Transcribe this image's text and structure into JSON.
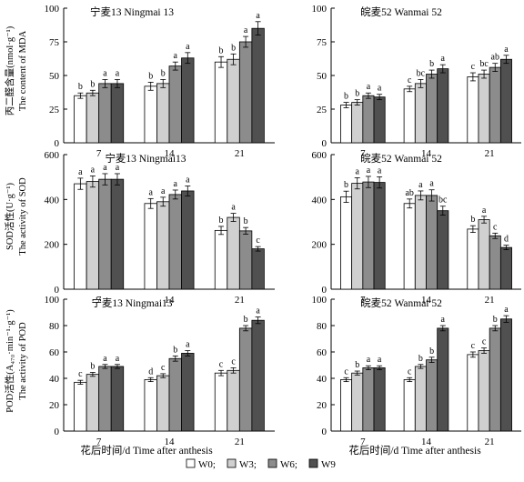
{
  "figure": {
    "x_axis_label": "花后时间/d   Time after anthesis",
    "legend": [
      "W0;",
      "W3;",
      "W6;",
      "W9"
    ],
    "series_colors": [
      "#ffffff",
      "#d0d0d0",
      "#8c8c8c",
      "#505050"
    ]
  },
  "row_labels": [
    {
      "cn": "丙二醛含量(nmol·g⁻¹)",
      "en": "The content of MDA"
    },
    {
      "cn": "SOD活性(U·g⁻¹)",
      "en": "The activity of SOD"
    },
    {
      "cn": "POD活性(A₄₇₀·min⁻¹·g⁻¹)",
      "en": "The activity of POD"
    }
  ],
  "chart_data": [
    {
      "type": "bar",
      "title": "宁麦13 Ningmai 13",
      "categories": [
        "7",
        "14",
        "21"
      ],
      "ylim": [
        0,
        100
      ],
      "yticks": [
        0,
        25,
        50,
        75,
        100
      ],
      "series": [
        {
          "name": "W0",
          "values": [
            35,
            42,
            60
          ],
          "errors": [
            2,
            3,
            4
          ]
        },
        {
          "name": "W3",
          "values": [
            37,
            44,
            62
          ],
          "errors": [
            2,
            3,
            4
          ]
        },
        {
          "name": "W6",
          "values": [
            44,
            57,
            75
          ],
          "errors": [
            3,
            3,
            4
          ]
        },
        {
          "name": "W9",
          "values": [
            44,
            63,
            85
          ],
          "errors": [
            3,
            4,
            5
          ]
        }
      ],
      "labels": [
        [
          "b",
          "b",
          "a",
          "a"
        ],
        [
          "b",
          "b",
          "a",
          "a"
        ],
        [
          "b",
          "b",
          "a",
          "a"
        ]
      ]
    },
    {
      "type": "bar",
      "title": "皖麦52 Wanmai 52",
      "categories": [
        "7",
        "14",
        "21"
      ],
      "ylim": [
        0,
        100
      ],
      "yticks": [
        0,
        25,
        50,
        75,
        100
      ],
      "series": [
        {
          "name": "W0",
          "values": [
            28,
            40,
            49
          ],
          "errors": [
            2,
            2,
            3
          ]
        },
        {
          "name": "W3",
          "values": [
            30,
            44,
            51
          ],
          "errors": [
            2,
            3,
            3
          ]
        },
        {
          "name": "W6",
          "values": [
            35,
            51,
            56
          ],
          "errors": [
            2,
            3,
            3
          ]
        },
        {
          "name": "W9",
          "values": [
            34,
            55,
            62
          ],
          "errors": [
            2,
            3,
            3
          ]
        }
      ],
      "labels": [
        [
          "b",
          "b",
          "a",
          "a"
        ],
        [
          "c",
          "bc",
          "b",
          "a"
        ],
        [
          "c",
          "bc",
          "ab",
          "a"
        ]
      ]
    },
    {
      "type": "bar",
      "title": "宁麦13 Ningmai13",
      "categories": [
        "7",
        "14",
        "21"
      ],
      "ylim": [
        0,
        600
      ],
      "yticks": [
        0,
        200,
        400,
        600
      ],
      "series": [
        {
          "name": "W0",
          "values": [
            470,
            382,
            262
          ],
          "errors": [
            25,
            22,
            18
          ]
        },
        {
          "name": "W3",
          "values": [
            480,
            390,
            320
          ],
          "errors": [
            25,
            20,
            18
          ]
        },
        {
          "name": "W6",
          "values": [
            490,
            422,
            260
          ],
          "errors": [
            25,
            20,
            15
          ]
        },
        {
          "name": "W9",
          "values": [
            490,
            438,
            180
          ],
          "errors": [
            25,
            22,
            10
          ]
        }
      ],
      "labels": [
        [
          "a",
          "a",
          "a",
          "a"
        ],
        [
          "a",
          "a",
          "a",
          "a"
        ],
        [
          "b",
          "a",
          "b",
          "c"
        ]
      ]
    },
    {
      "type": "bar",
      "title": "皖麦52 Wanmai 52",
      "categories": [
        "7",
        "14",
        "21"
      ],
      "ylim": [
        0,
        600
      ],
      "yticks": [
        0,
        200,
        400,
        600
      ],
      "series": [
        {
          "name": "W0",
          "values": [
            412,
            382,
            268
          ],
          "errors": [
            25,
            20,
            15
          ]
        },
        {
          "name": "W3",
          "values": [
            472,
            418,
            310
          ],
          "errors": [
            25,
            20,
            15
          ]
        },
        {
          "name": "W6",
          "values": [
            478,
            418,
            238
          ],
          "errors": [
            25,
            25,
            12
          ]
        },
        {
          "name": "W9",
          "values": [
            476,
            350,
            186
          ],
          "errors": [
            25,
            20,
            10
          ]
        }
      ],
      "labels": [
        [
          "b",
          "a",
          "a",
          "a"
        ],
        [
          "ab",
          "a",
          "a",
          "bc"
        ],
        [
          "b",
          "a",
          "c",
          "d"
        ]
      ]
    },
    {
      "type": "bar",
      "title": "宁麦13 Ningmai13",
      "categories": [
        "7",
        "14",
        "21"
      ],
      "ylim": [
        0,
        100
      ],
      "yticks": [
        0,
        20,
        40,
        60,
        80,
        100
      ],
      "series": [
        {
          "name": "W0",
          "values": [
            37,
            39,
            44
          ],
          "errors": [
            1.5,
            1.5,
            2
          ]
        },
        {
          "name": "W3",
          "values": [
            43,
            42,
            46
          ],
          "errors": [
            1.5,
            1.5,
            2
          ]
        },
        {
          "name": "W6",
          "values": [
            49,
            55,
            78
          ],
          "errors": [
            1.5,
            2,
            2
          ]
        },
        {
          "name": "W9",
          "values": [
            49,
            59,
            84
          ],
          "errors": [
            1.5,
            2,
            2.5
          ]
        }
      ],
      "labels": [
        [
          "c",
          "b",
          "a",
          "a"
        ],
        [
          "d",
          "c",
          "b",
          "a"
        ],
        [
          "c",
          "c",
          "b",
          "a"
        ]
      ]
    },
    {
      "type": "bar",
      "title": "皖麦52 Wanmai 52",
      "categories": [
        "7",
        "14",
        "21"
      ],
      "ylim": [
        0,
        100
      ],
      "yticks": [
        0,
        20,
        40,
        60,
        80,
        100
      ],
      "series": [
        {
          "name": "W0",
          "values": [
            39,
            39,
            58
          ],
          "errors": [
            1.5,
            1.5,
            2
          ]
        },
        {
          "name": "W3",
          "values": [
            44,
            49,
            61
          ],
          "errors": [
            1.5,
            1.5,
            2
          ]
        },
        {
          "name": "W6",
          "values": [
            48,
            54,
            78
          ],
          "errors": [
            1.5,
            2,
            2
          ]
        },
        {
          "name": "W9",
          "values": [
            48,
            78,
            85
          ],
          "errors": [
            1.5,
            2,
            2.5
          ]
        }
      ],
      "labels": [
        [
          "c",
          "b",
          "a",
          "a"
        ],
        [
          "c",
          "b",
          "b",
          "a"
        ],
        [
          "c",
          "c",
          "b",
          "a"
        ]
      ]
    }
  ]
}
